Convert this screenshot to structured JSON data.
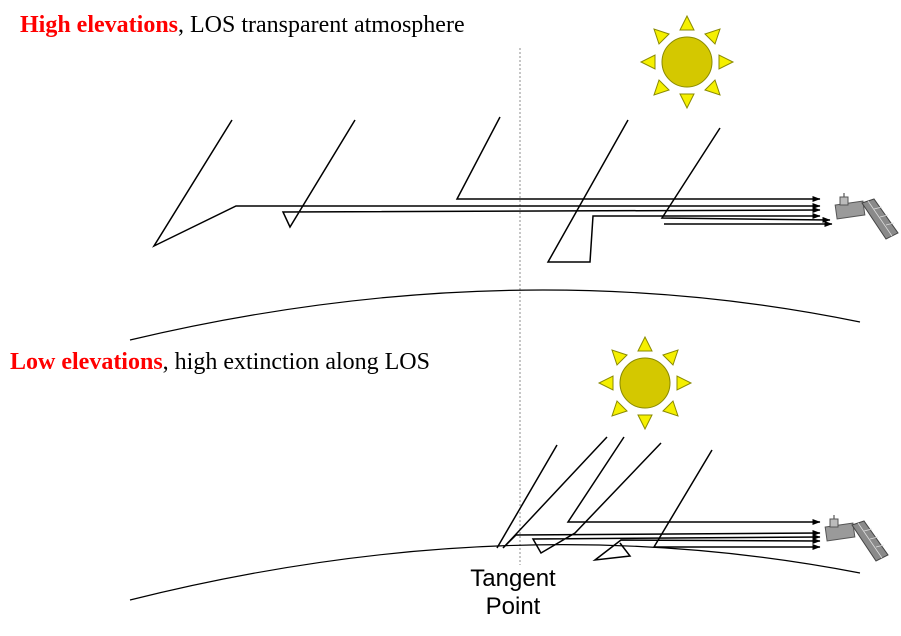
{
  "panels": [
    {
      "emphasis": "High elevations",
      "rest": ", LOS transparent atmosphere"
    },
    {
      "emphasis": "Low elevations",
      "rest": ", high extinction along LOS"
    }
  ],
  "tangent_label_line1": "Tangent",
  "tangent_label_line2": "Point",
  "icons": [
    "sun-icon",
    "satellite-icon"
  ],
  "colors": {
    "emphasis": "#ff0000",
    "sun_fill": "#d4c800",
    "sun_rays": "#f5f000",
    "lines": "#000000",
    "dotted": "#8c8c8c"
  }
}
